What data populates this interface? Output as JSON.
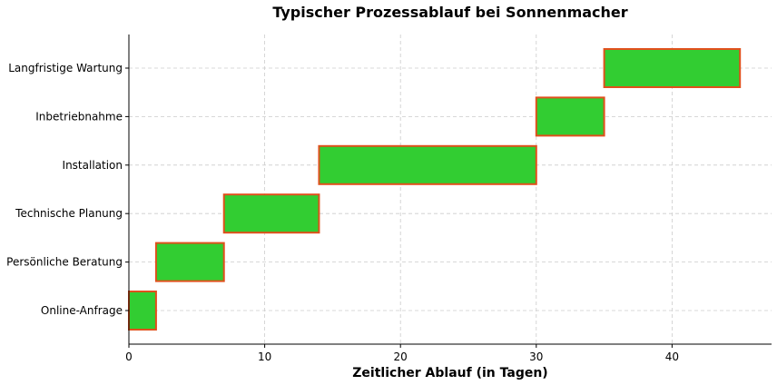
{
  "chart_data": {
    "type": "gantt",
    "title": "Typischer Prozessablauf bei Sonnenmacher",
    "xlabel": "Zeitlicher Ablauf (in Tagen)",
    "ylabel": "",
    "xlim": [
      0,
      47.5
    ],
    "xticks": [
      0,
      10,
      20,
      30,
      40
    ],
    "grid": true,
    "colors": {
      "bar_fill": "#32cd32",
      "bar_edge": "#e0501c"
    },
    "tasks": [
      {
        "name": "Online-Anfrage",
        "start": 0,
        "end": 2
      },
      {
        "name": "Persönliche Beratung",
        "start": 2,
        "end": 7
      },
      {
        "name": "Technische Planung",
        "start": 7,
        "end": 14
      },
      {
        "name": "Installation",
        "start": 14,
        "end": 30
      },
      {
        "name": "Inbetriebnahme",
        "start": 30,
        "end": 35
      },
      {
        "name": "Langfristige Wartung",
        "start": 35,
        "end": 45
      }
    ]
  }
}
